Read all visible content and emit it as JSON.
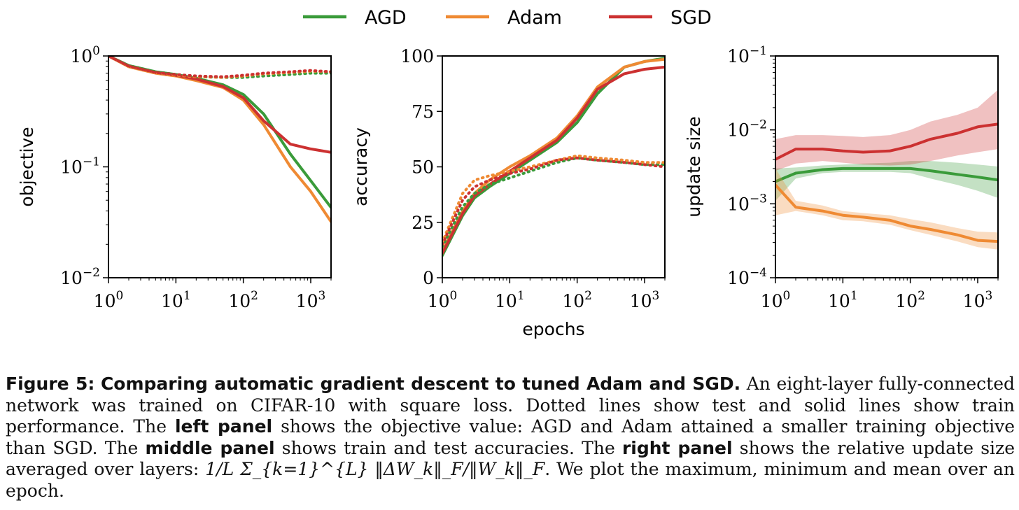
{
  "legend": [
    {
      "name": "AGD",
      "color": "#3a9b3a"
    },
    {
      "name": "Adam",
      "color": "#ef8a33"
    },
    {
      "name": "SGD",
      "color": "#cc3131"
    }
  ],
  "chart_data": [
    {
      "type": "line",
      "panel": "left",
      "xlabel": "",
      "ylabel": "objective",
      "xscale": "log",
      "yscale": "log",
      "xlim": [
        1,
        2000
      ],
      "ylim": [
        0.01,
        1
      ],
      "xticks": [
        "10^0",
        "10^1",
        "10^2",
        "10^3"
      ],
      "yticks": [
        "10^-2",
        "10^-1",
        "10^0"
      ],
      "series": [
        {
          "name": "AGD",
          "style": "solid",
          "x": [
            1,
            2,
            5,
            10,
            20,
            50,
            100,
            200,
            500,
            1000,
            2000
          ],
          "y": [
            1.0,
            0.82,
            0.72,
            0.68,
            0.63,
            0.55,
            0.45,
            0.3,
            0.13,
            0.075,
            0.043
          ]
        },
        {
          "name": "Adam",
          "style": "solid",
          "x": [
            1,
            2,
            5,
            10,
            20,
            50,
            100,
            200,
            500,
            1000,
            2000
          ],
          "y": [
            1.0,
            0.8,
            0.7,
            0.66,
            0.6,
            0.52,
            0.4,
            0.24,
            0.1,
            0.06,
            0.032
          ]
        },
        {
          "name": "SGD",
          "style": "solid",
          "x": [
            1,
            2,
            5,
            10,
            20,
            50,
            100,
            200,
            500,
            1000,
            2000
          ],
          "y": [
            1.0,
            0.81,
            0.71,
            0.67,
            0.62,
            0.53,
            0.42,
            0.26,
            0.16,
            0.145,
            0.135
          ]
        },
        {
          "name": "AGD",
          "style": "dotted",
          "x": [
            1,
            2,
            5,
            10,
            20,
            50,
            100,
            200,
            500,
            1000,
            2000
          ],
          "y": [
            1.0,
            0.82,
            0.72,
            0.68,
            0.65,
            0.64,
            0.64,
            0.66,
            0.68,
            0.7,
            0.7
          ]
        },
        {
          "name": "Adam",
          "style": "dotted",
          "x": [
            1,
            2,
            5,
            10,
            20,
            50,
            100,
            200,
            500,
            1000,
            2000
          ],
          "y": [
            1.0,
            0.8,
            0.7,
            0.67,
            0.65,
            0.64,
            0.66,
            0.69,
            0.71,
            0.73,
            0.72
          ]
        },
        {
          "name": "SGD",
          "style": "dotted",
          "x": [
            1,
            2,
            5,
            10,
            20,
            50,
            100,
            200,
            500,
            1000,
            2000
          ],
          "y": [
            1.0,
            0.81,
            0.71,
            0.68,
            0.66,
            0.65,
            0.67,
            0.7,
            0.72,
            0.74,
            0.72
          ]
        }
      ]
    },
    {
      "type": "line",
      "panel": "middle",
      "xlabel": "epochs",
      "ylabel": "accuracy",
      "xscale": "log",
      "yscale": "linear",
      "xlim": [
        1,
        2000
      ],
      "ylim": [
        0,
        100
      ],
      "xticks": [
        "10^0",
        "10^1",
        "10^2",
        "10^3"
      ],
      "yticks": [
        "0",
        "25",
        "50",
        "75",
        "100"
      ],
      "series": [
        {
          "name": "AGD",
          "style": "solid",
          "x": [
            1,
            2,
            3,
            5,
            10,
            20,
            50,
            100,
            200,
            500,
            1000,
            2000
          ],
          "y": [
            10,
            28,
            36,
            41,
            47,
            53,
            61,
            70,
            83,
            95,
            97.5,
            99
          ]
        },
        {
          "name": "Adam",
          "style": "solid",
          "x": [
            1,
            2,
            3,
            5,
            10,
            20,
            50,
            100,
            200,
            500,
            1000,
            2000
          ],
          "y": [
            12,
            30,
            38,
            44,
            50,
            55,
            63,
            73,
            86,
            95,
            97.5,
            98.5
          ]
        },
        {
          "name": "SGD",
          "style": "solid",
          "x": [
            1,
            2,
            3,
            5,
            10,
            20,
            50,
            100,
            200,
            500,
            1000,
            2000
          ],
          "y": [
            11,
            29,
            37,
            42,
            48,
            54,
            62,
            72,
            85,
            92,
            94,
            95
          ]
        },
        {
          "name": "AGD",
          "style": "dotted",
          "x": [
            1,
            2,
            3,
            5,
            10,
            20,
            50,
            100,
            200,
            500,
            1000,
            2000
          ],
          "y": [
            14,
            32,
            38,
            42,
            45,
            48,
            52,
            54,
            53,
            52,
            51,
            51
          ]
        },
        {
          "name": "Adam",
          "style": "dotted",
          "x": [
            1,
            2,
            3,
            5,
            10,
            20,
            50,
            100,
            200,
            500,
            1000,
            2000
          ],
          "y": [
            16,
            38,
            44,
            46,
            48,
            50,
            53,
            55,
            54,
            53,
            52,
            52
          ]
        },
        {
          "name": "SGD",
          "style": "dotted",
          "x": [
            1,
            2,
            3,
            5,
            10,
            20,
            50,
            100,
            200,
            500,
            1000,
            2000
          ],
          "y": [
            15,
            35,
            41,
            44,
            47,
            49,
            53,
            54,
            53,
            52,
            51,
            50
          ]
        }
      ]
    },
    {
      "type": "line",
      "panel": "right",
      "xlabel": "",
      "ylabel": "update size",
      "xscale": "log",
      "yscale": "log",
      "xlim": [
        1,
        2000
      ],
      "ylim": [
        0.0001,
        0.1
      ],
      "xticks": [
        "10^0",
        "10^1",
        "10^2",
        "10^3"
      ],
      "yticks": [
        "10^-4",
        "10^-3",
        "10^-2",
        "10^-1"
      ],
      "series": [
        {
          "name": "AGD",
          "x": [
            1,
            2,
            5,
            10,
            20,
            50,
            100,
            200,
            500,
            1000,
            2000
          ],
          "mean": [
            0.002,
            0.0026,
            0.0029,
            0.003,
            0.003,
            0.003,
            0.003,
            0.0028,
            0.0025,
            0.0023,
            0.0021
          ],
          "min": [
            0.0011,
            0.0022,
            0.0026,
            0.0027,
            0.0027,
            0.0027,
            0.0026,
            0.0022,
            0.0018,
            0.0015,
            0.0012
          ],
          "max": [
            0.003,
            0.0031,
            0.0033,
            0.0034,
            0.0035,
            0.0036,
            0.0038,
            0.0038,
            0.0036,
            0.0034,
            0.0032
          ]
        },
        {
          "name": "Adam",
          "x": [
            1,
            2,
            5,
            10,
            20,
            50,
            100,
            200,
            500,
            1000,
            2000
          ],
          "mean": [
            0.0018,
            0.0009,
            0.0008,
            0.0007,
            0.00066,
            0.0006,
            0.0005,
            0.00045,
            0.00038,
            0.00032,
            0.00031
          ],
          "min": [
            0.0007,
            0.0008,
            0.0007,
            0.0006,
            0.00058,
            0.00052,
            0.00044,
            0.00038,
            0.00031,
            0.00026,
            0.00024
          ],
          "max": [
            0.003,
            0.0011,
            0.00095,
            0.0008,
            0.00075,
            0.0007,
            0.00062,
            0.00056,
            0.00047,
            0.00042,
            0.00041
          ]
        },
        {
          "name": "SGD",
          "x": [
            1,
            2,
            5,
            10,
            20,
            50,
            100,
            200,
            500,
            1000,
            2000
          ],
          "mean": [
            0.004,
            0.0055,
            0.0055,
            0.0052,
            0.005,
            0.0052,
            0.006,
            0.0075,
            0.009,
            0.011,
            0.012
          ],
          "min": [
            0.0028,
            0.0035,
            0.0038,
            0.0036,
            0.0034,
            0.0033,
            0.0034,
            0.0038,
            0.0045,
            0.005,
            0.0055
          ],
          "max": [
            0.0075,
            0.0085,
            0.0085,
            0.0083,
            0.008,
            0.0085,
            0.01,
            0.013,
            0.016,
            0.02,
            0.035
          ]
        }
      ]
    }
  ],
  "caption": {
    "label": "Figure 5:",
    "title": "Comparing automatic gradient descent to tuned Adam and SGD.",
    "t1": " An eight-layer fully-connected network was trained on CIFAR-10 with square loss.  Dotted lines show test and solid lines show train performance. The ",
    "b1": "left panel",
    "t2": " shows the objective value: AGD and Adam attained a smaller training objective than SGD. The ",
    "b2": "middle panel",
    "t3": " shows train and test accuracies. The ",
    "b3": "right panel",
    "t4": " shows the relative update size averaged over layers: ",
    "formula": "1/L Σ_{k=1}^{L} ‖ΔW_k‖_F/‖W_k‖_F",
    "t5": ". We plot the maximum, minimum and mean over an epoch."
  }
}
